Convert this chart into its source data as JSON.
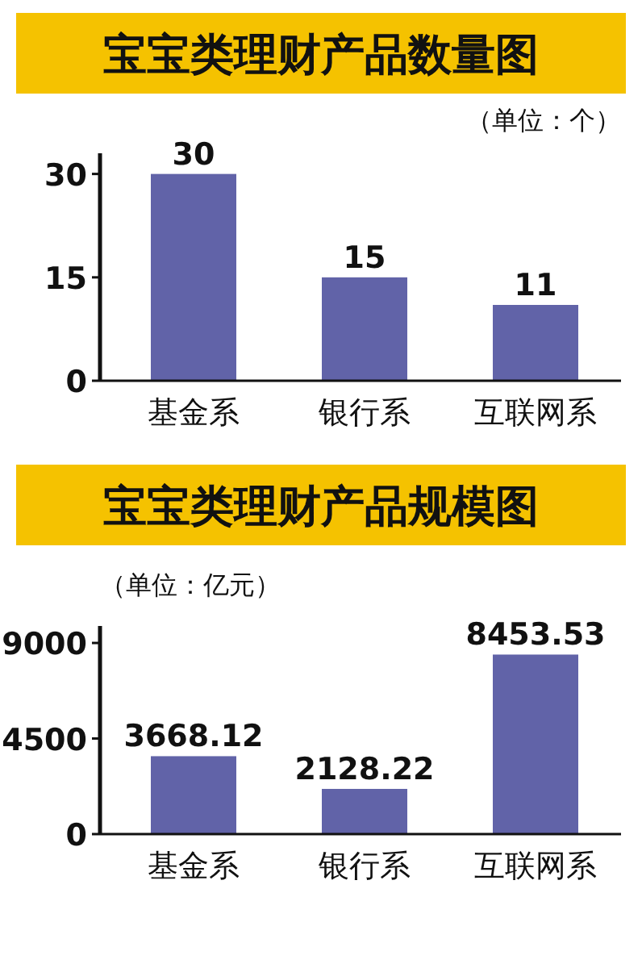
{
  "chart_data": [
    {
      "type": "bar",
      "title": "宝宝类理财产品数量图",
      "annotations": [
        "（单位：个）"
      ],
      "categories": [
        "基金系",
        "银行系",
        "互联网系"
      ],
      "values": [
        30,
        15,
        11
      ],
      "color": "#6163a8",
      "ylim": [
        0,
        33
      ],
      "yticks": [
        0,
        15,
        30
      ],
      "data_labels": true,
      "grid": false
    },
    {
      "type": "bar",
      "title": "宝宝类理财产品规模图",
      "annotations": [
        "（单位：亿元）"
      ],
      "categories": [
        "基金系",
        "银行系",
        "互联网系"
      ],
      "values": [
        3668.12,
        2128.22,
        8453.53
      ],
      "color": "#6163a8",
      "ylim": [
        0,
        9800
      ],
      "yticks": [
        0,
        4500,
        9000
      ],
      "data_labels": true,
      "grid": false
    }
  ]
}
